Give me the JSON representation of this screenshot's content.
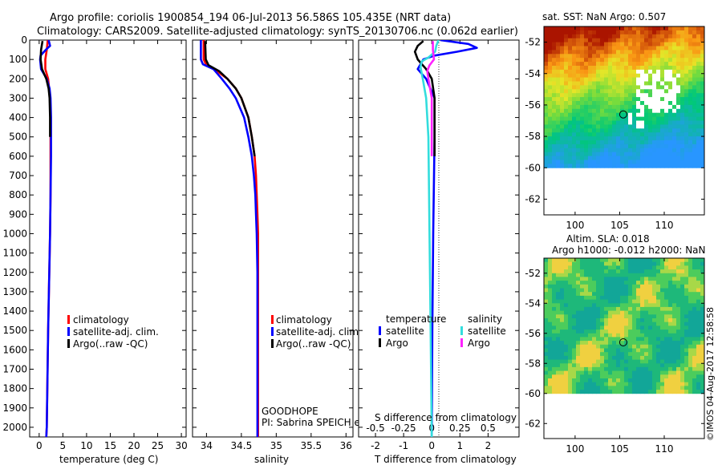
{
  "header": {
    "title_line1": "Argo profile: coriolis 1900854_194 06-Jul-2013 56.586S 105.435E (NRT data)",
    "title_line2": "Climatology: CARS2009. Satellite-adjusted climatology: synTS_20130706.nc (0.062d earlier)"
  },
  "footer": {
    "project": "GOODHOPE",
    "pi": "PI: Sabrina SPEICH et Michel ARHAN",
    "watermark": "©IMOS 04-Aug-2017 12:58:58"
  },
  "colors": {
    "climatology": "#ff0000",
    "satellite": "#0000ff",
    "argo": "#000000",
    "sal_satellite": "#33dddd",
    "sal_argo": "#ff22ff"
  },
  "chart_data": [
    {
      "id": "temperature",
      "type": "line",
      "xlabel": "temperature (deg C)",
      "ylabel": "",
      "xlim": [
        -2,
        31
      ],
      "ylim": [
        2050,
        0
      ],
      "xticks": [
        0,
        5,
        10,
        15,
        20,
        25,
        30
      ],
      "xtick_labels": [
        "0",
        "5",
        "10",
        "15",
        "20",
        "25",
        "30"
      ],
      "yticks": [
        0,
        100,
        200,
        300,
        400,
        500,
        600,
        700,
        800,
        900,
        1000,
        1100,
        1200,
        1300,
        1400,
        1500,
        1600,
        1700,
        1800,
        1900,
        2000
      ],
      "ytick_labels": [
        "0",
        "100",
        "200",
        "300",
        "400",
        "500",
        "600",
        "700",
        "800",
        "900",
        "1000",
        "1100",
        "1200",
        "1300",
        "1400",
        "1500",
        "1600",
        "1700",
        "1800",
        "1900",
        "2000"
      ],
      "legend": [
        "climatology",
        "satellite-adj. clim.",
        "Argo(..raw -QC)"
      ],
      "series": [
        {
          "name": "climatology",
          "color": "#ff0000",
          "depth": [
            0,
            50,
            100,
            150,
            200,
            300,
            400,
            600,
            800,
            1000,
            1500,
            2000,
            2050
          ],
          "values": [
            1.8,
            1.6,
            1.3,
            1.3,
            1.9,
            2.3,
            2.4,
            2.4,
            2.4,
            2.3,
            1.9,
            1.6,
            1.5
          ]
        },
        {
          "name": "satellite-adj. clim.",
          "color": "#0000ff",
          "depth": [
            0,
            30,
            50,
            80,
            100,
            150,
            200,
            250,
            300,
            400,
            600,
            800,
            1000,
            1500,
            2000,
            2050
          ],
          "values": [
            2.0,
            2.3,
            1.4,
            0.3,
            0.2,
            0.4,
            1.6,
            2.2,
            2.4,
            2.5,
            2.5,
            2.4,
            2.3,
            1.9,
            1.6,
            1.5
          ]
        },
        {
          "name": "Argo(..raw -QC)",
          "color": "#000000",
          "depth": [
            5,
            50,
            100,
            150,
            200,
            250,
            300,
            400,
            500
          ],
          "values": [
            0.7,
            0.4,
            0.3,
            0.6,
            1.5,
            2.0,
            2.2,
            2.3,
            2.3
          ]
        }
      ]
    },
    {
      "id": "salinity",
      "type": "line",
      "xlabel": "salinity",
      "ylabel": "",
      "xlim": [
        33.8,
        36.1
      ],
      "ylim": [
        2050,
        0
      ],
      "xticks": [
        34,
        34.5,
        35,
        35.5,
        36
      ],
      "xtick_labels": [
        "34",
        "34.5",
        "35",
        "35.5",
        "36"
      ],
      "legend": [
        "climatology",
        "satellite-adj. clim.",
        "Argo(..raw -QC)"
      ],
      "series": [
        {
          "name": "climatology",
          "color": "#ff0000",
          "depth": [
            0,
            100,
            130,
            160,
            200,
            250,
            300,
            400,
            500,
            600,
            700,
            800,
            900,
            1000,
            1200,
            1500,
            2000,
            2050
          ],
          "values": [
            33.96,
            33.96,
            34.0,
            34.15,
            34.3,
            34.42,
            34.5,
            34.6,
            34.65,
            34.69,
            34.71,
            34.72,
            34.73,
            34.74,
            34.74,
            34.74,
            34.74,
            34.74
          ]
        },
        {
          "name": "satellite-adj. clim.",
          "color": "#0000ff",
          "depth": [
            0,
            100,
            125,
            150,
            200,
            250,
            300,
            400,
            500,
            600,
            700,
            800,
            900,
            1000,
            1200,
            1500,
            2000,
            2050
          ],
          "values": [
            33.92,
            33.92,
            33.95,
            34.1,
            34.22,
            34.33,
            34.42,
            34.54,
            34.6,
            34.65,
            34.68,
            34.7,
            34.71,
            34.72,
            34.73,
            34.73,
            34.73,
            34.73
          ]
        },
        {
          "name": "Argo(..raw -QC)",
          "color": "#000000",
          "depth": [
            5,
            100,
            130,
            160,
            200,
            250,
            300,
            400,
            500,
            600
          ],
          "values": [
            33.98,
            33.99,
            34.03,
            34.18,
            34.3,
            34.42,
            34.5,
            34.6,
            34.65,
            34.69
          ]
        }
      ]
    },
    {
      "id": "difference",
      "type": "line",
      "xlabel": "T difference from climatology",
      "xlabel2": "S difference from climatology",
      "xlim": [
        -2.6,
        3.1
      ],
      "ylim": [
        2050,
        0
      ],
      "xticks": [
        -2,
        -1,
        0,
        1,
        2
      ],
      "xtick_labels": [
        "-2",
        "-1",
        "0",
        "1",
        "2"
      ],
      "xticks2": [
        -0.5,
        -0.25,
        0,
        0.25,
        0.5
      ],
      "xtick2_labels": [
        "-0.5",
        "-0.25",
        "0",
        "0.25",
        "0.5"
      ],
      "legend_temperature_title": "temperature",
      "legend_salinity_title": "salinity",
      "legend_temperature": [
        "satellite",
        "Argo"
      ],
      "legend_salinity": [
        "satellite",
        "Argo"
      ],
      "series": [
        {
          "name": "T satellite",
          "color": "#0000ff",
          "depth": [
            0,
            20,
            40,
            60,
            80,
            100,
            150,
            200,
            300,
            500,
            1000,
            1500,
            2050
          ],
          "values": [
            0.3,
            1.3,
            1.6,
            0.9,
            0.1,
            -0.3,
            -0.5,
            -0.2,
            0.1,
            0.1,
            0.05,
            0.02,
            0.0
          ]
        },
        {
          "name": "T Argo",
          "color": "#000000",
          "depth": [
            5,
            30,
            60,
            100,
            150,
            200,
            300,
            400,
            500,
            600
          ],
          "values": [
            -0.3,
            -0.5,
            -0.6,
            -0.5,
            -0.2,
            0.0,
            0.1,
            0.1,
            0.1,
            0.1
          ]
        },
        {
          "name": "S satellite",
          "color": "#33dddd",
          "depth": [
            0,
            30,
            60,
            90,
            110,
            140,
            200,
            300,
            500,
            1000,
            1500,
            2050
          ],
          "values": [
            0.06,
            0.04,
            0.03,
            -0.03,
            -0.09,
            -0.1,
            -0.08,
            -0.05,
            -0.03,
            -0.02,
            -0.01,
            0.0
          ]
        },
        {
          "name": "S Argo",
          "color": "#ff22ff",
          "depth": [
            5,
            50,
            100,
            130,
            160,
            200,
            300,
            400,
            500,
            600
          ],
          "values": [
            0.01,
            0.01,
            0.02,
            -0.02,
            -0.04,
            -0.03,
            0.0,
            0.0,
            0.0,
            0.0
          ]
        }
      ]
    },
    {
      "id": "sst_map",
      "type": "heatmap",
      "title": "sat. SST: NaN Argo: 0.507",
      "xlim": [
        96.5,
        114.5
      ],
      "ylim": [
        -63,
        -51
      ],
      "xticks": [
        100,
        105,
        110
      ],
      "xtick_labels": [
        "100",
        "105",
        "110"
      ],
      "yticks": [
        -52,
        -54,
        -56,
        -58,
        -60,
        -62
      ],
      "ytick_labels": [
        "-52",
        "-54",
        "-56",
        "-58",
        "-60",
        "-62"
      ],
      "data_ylim": [
        -60,
        -51
      ],
      "argo_marker": {
        "lon": 105.4,
        "lat": -56.6
      }
    },
    {
      "id": "sla_map",
      "type": "heatmap",
      "title_line1": "Altim. SLA: 0.018",
      "title_line2": "Argo h1000: -0.012 h2000: NaN",
      "xlim": [
        96.5,
        114.5
      ],
      "ylim": [
        -63,
        -51
      ],
      "xticks": [
        100,
        105,
        110
      ],
      "xtick_labels": [
        "100",
        "105",
        "110"
      ],
      "yticks": [
        -52,
        -54,
        -56,
        -58,
        -60,
        -62
      ],
      "ytick_labels": [
        "-52",
        "-54",
        "-56",
        "-58",
        "-60",
        "-62"
      ],
      "data_ylim": [
        -60,
        -51
      ],
      "argo_marker": {
        "lon": 105.4,
        "lat": -56.6
      }
    }
  ]
}
